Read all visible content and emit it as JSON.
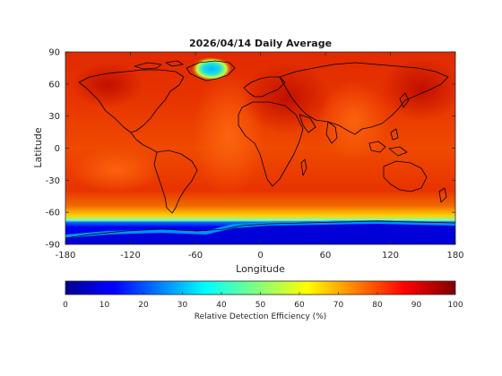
{
  "chart_data": {
    "type": "heatmap",
    "title": "2026/04/14 Daily Average",
    "xlabel": "Longitude",
    "ylabel": "Latitude",
    "xlim": [
      -180,
      180
    ],
    "ylim": [
      -90,
      90
    ],
    "xticks": [
      -180,
      -120,
      -60,
      0,
      60,
      120,
      180
    ],
    "yticks": [
      90,
      60,
      30,
      0,
      -30,
      -60,
      -90
    ],
    "colormap": "jet",
    "grid": false,
    "colorbar": {
      "label": "Relative Detection Efficiency (%)",
      "range": [
        0,
        100
      ],
      "ticks": [
        0,
        10,
        20,
        30,
        40,
        50,
        60,
        70,
        80,
        90,
        100
      ],
      "placement": "bottom"
    },
    "approximate_values": {
      "typical_ocean_mid_latitudes": 85,
      "tropics_and_land": 88,
      "southern_ocean_band_near_60S": 72,
      "antarctica": 5,
      "greenland_interior": 38
    }
  }
}
